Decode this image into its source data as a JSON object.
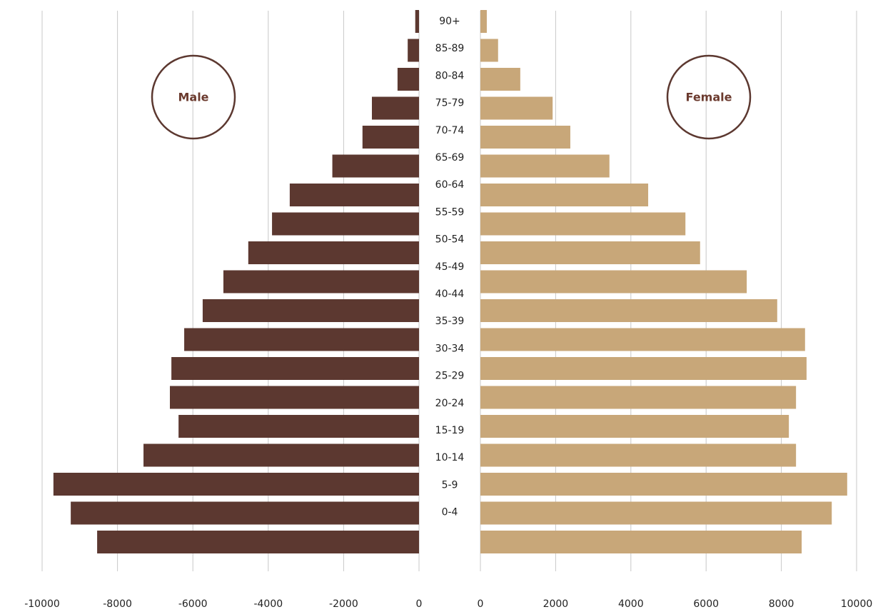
{
  "chart_data": {
    "type": "pyramid",
    "categories": [
      "90+",
      "85-89",
      "80-84",
      "75-79",
      "70-74",
      "65-69",
      "60-64",
      "55-59",
      "50-54",
      "45-49",
      "40-44",
      "35-39",
      "30-34",
      "25-29",
      "20-24",
      "15-19",
      "10-14",
      "5-9",
      "0-4"
    ],
    "series": [
      {
        "name": "Male",
        "color": "#5c3830",
        "values": [
          -100,
          -300,
          -570,
          -1250,
          -1500,
          -2300,
          -3430,
          -3900,
          -4530,
          -5190,
          -5740,
          -6230,
          -6570,
          -6610,
          -6380,
          -7310,
          -9700,
          -9240,
          -8540
        ],
        "xlim": [
          -10000,
          0
        ],
        "xticks": [
          -10000,
          -8000,
          -6000,
          -4000,
          -2000,
          0
        ]
      },
      {
        "name": "Female",
        "color": "#c8a779",
        "values": [
          170,
          470,
          1060,
          1920,
          2390,
          3430,
          4460,
          5450,
          5840,
          7080,
          7890,
          8630,
          8670,
          8390,
          8200,
          8390,
          9750,
          9340,
          8540
        ],
        "xlim": [
          0,
          10000
        ],
        "xticks": [
          0,
          2000,
          4000,
          6000,
          8000,
          10000
        ]
      }
    ],
    "grid": true
  }
}
